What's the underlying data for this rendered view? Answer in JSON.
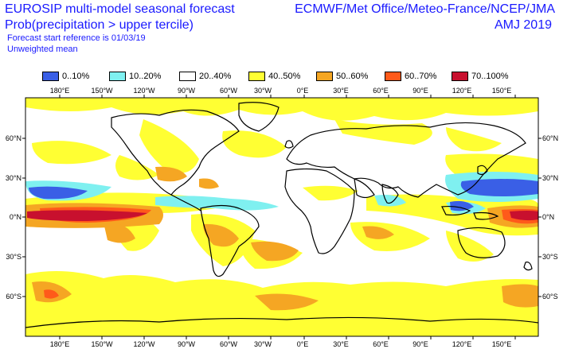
{
  "header": {
    "title_line1": "EUROSIP multi-model seasonal forecast",
    "title_line2": "Prob(precipitation > upper tercile)",
    "start_ref": "Forecast start reference is 01/03/19",
    "weighting": "Unweighted mean",
    "centres": "ECMWF/Met Office/Meteo-France/NCEP/JMA",
    "period": "AMJ 2019"
  },
  "legend": [
    {
      "label": "0..10%",
      "color": "#3a5fe6"
    },
    {
      "label": "10..20%",
      "color": "#7ff0f0"
    },
    {
      "label": "20..40%",
      "color": "#ffffff"
    },
    {
      "label": "40..50%",
      "color": "#ffff33"
    },
    {
      "label": "50..60%",
      "color": "#f5a623"
    },
    {
      "label": "60..70%",
      "color": "#ff5a1a"
    },
    {
      "label": "70..100%",
      "color": "#c8102e"
    }
  ],
  "axes": {
    "x_ticks": [
      "180°E",
      "150°W",
      "120°W",
      "90°W",
      "60°W",
      "30°W",
      "0°E",
      "30°E",
      "60°E",
      "90°E",
      "120°E",
      "150°E"
    ],
    "y_ticks_left": [
      "60°N",
      "30°N",
      "0°N",
      "30°S",
      "60°S"
    ],
    "y_ticks_right": [
      "60°N",
      "30°N",
      "0°N",
      "30°S",
      "60°S"
    ]
  }
}
